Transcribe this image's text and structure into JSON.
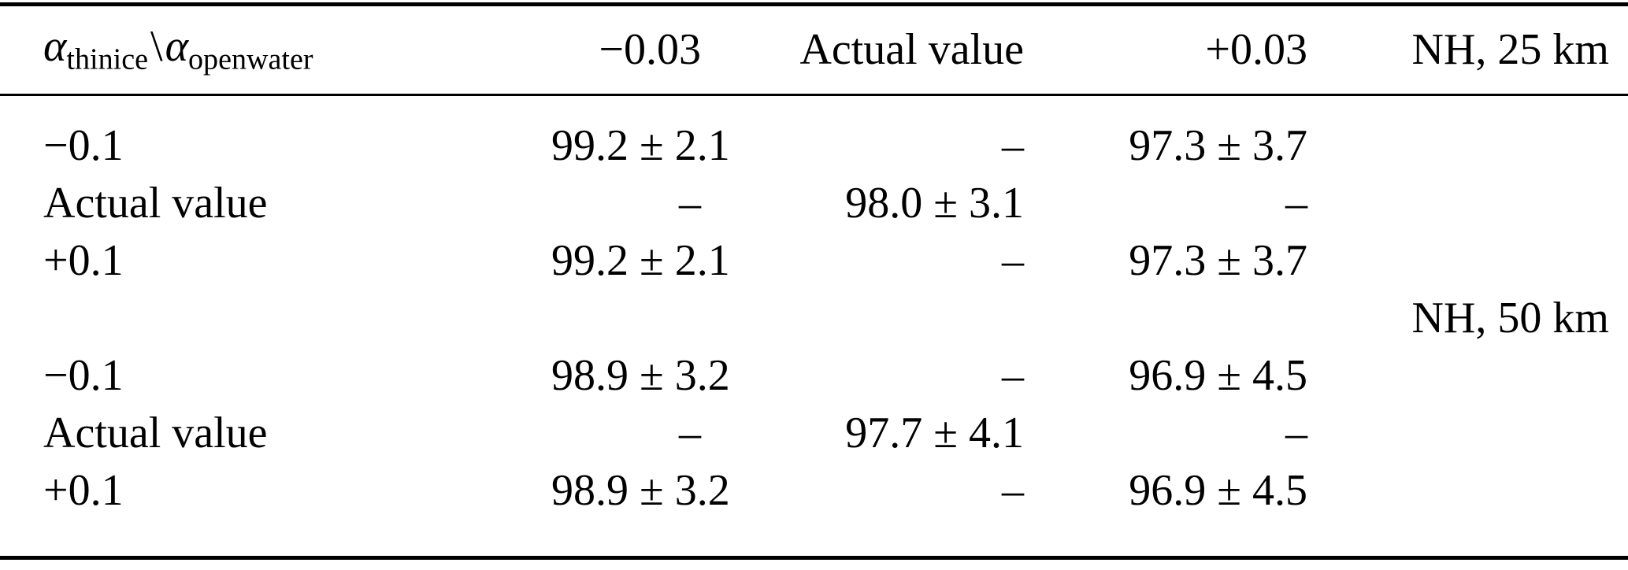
{
  "table": {
    "header": {
      "corner": {
        "alpha1": "α",
        "sub1": "thinice",
        "sep": "\\",
        "alpha2": "α",
        "sub2": "openwater"
      },
      "col_minus": "−0.03",
      "col_actual": "Actual value",
      "col_plus": "+0.03",
      "section_label": "NH, 25 km"
    },
    "section2_label": "NH, 50 km",
    "rows": [
      {
        "cells": [
          "−0.1",
          "99.2 ± 2.1",
          "–",
          "97.3 ± 3.7",
          ""
        ]
      },
      {
        "cells": [
          "Actual value",
          "–",
          "98.0 ± 3.1",
          "–",
          ""
        ]
      },
      {
        "cells": [
          "+0.1",
          "99.2 ± 2.1",
          "–",
          "97.3 ± 3.7",
          ""
        ]
      },
      {
        "cells": [
          "",
          "",
          "",
          "",
          "NH, 50 km"
        ]
      },
      {
        "cells": [
          "−0.1",
          "98.9 ± 3.2",
          "–",
          "96.9 ± 4.5",
          ""
        ]
      },
      {
        "cells": [
          "Actual value",
          "–",
          "97.7 ± 4.1",
          "–",
          ""
        ]
      },
      {
        "cells": [
          "+0.1",
          "98.9 ± 3.2",
          "–",
          "96.9 ± 4.5",
          ""
        ]
      }
    ],
    "colors": {
      "text": "#000000",
      "background": "#ffffff",
      "rule": "#000000"
    }
  }
}
